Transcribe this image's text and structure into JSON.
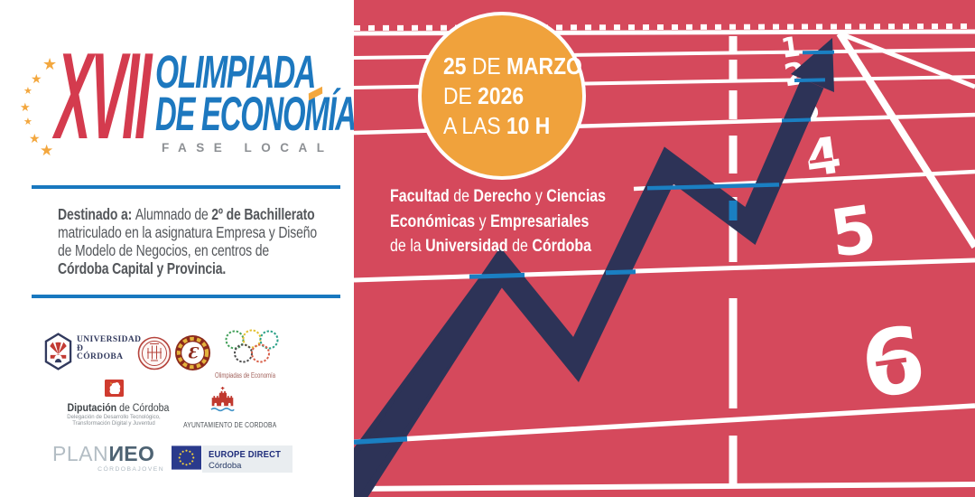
{
  "brand": {
    "numeral": "XVII",
    "title_line1": "OLIMPIADA",
    "title_line2": "DE ECONOMÍA",
    "tagline": "FASE LOCAL",
    "colors": {
      "red": "#d43b4e",
      "blue": "#1d78bf",
      "star_orange": "#f3a73e"
    }
  },
  "audience_lines": [
    [
      {
        "t": "Destinado a: ",
        "b": 1
      },
      {
        "t": "Alumnado de ",
        "b": 0
      },
      {
        "t": "2º de Bachillerato",
        "b": 1
      }
    ],
    [
      {
        "t": "matriculado en la asignatura Empresa y Diseño",
        "b": 0
      }
    ],
    [
      {
        "t": "de Modelo de Negocios, en centros de",
        "b": 0
      }
    ],
    [
      {
        "t": "Córdoba Capital y Provincia.",
        "b": 1
      }
    ]
  ],
  "sponsors": {
    "uco": {
      "line1": "UNIVERSIDAD",
      "line2": "Ð",
      "line3": "CÓRDOBA"
    },
    "economics_seal_letter": "Ɛ",
    "rings_caption": "Olimpiadas de Economía",
    "diputacion": {
      "name_bold": "Diputación",
      "name_rest": " de Córdoba",
      "sub1": "Delegación de Desarrollo Tecnológico,",
      "sub2": "Transformación Digital y Juventud"
    },
    "ayuntamiento": {
      "label": "AYUNTAMIENTO DE CORDOBA"
    },
    "planneo": {
      "part1": "PLAN",
      "n": "N",
      "part2": "EO",
      "sub": "CÓRDOBAJOVEN"
    },
    "europe_direct": {
      "title": "EUROPE DIRECT",
      "sub": "Córdoba"
    }
  },
  "event": {
    "badge_lines": [
      [
        {
          "t": "25 ",
          "b": 1
        },
        {
          "t": "DE ",
          "b": 0
        },
        {
          "t": "MARZO",
          "b": 1
        }
      ],
      [
        {
          "t": "DE ",
          "b": 0
        },
        {
          "t": "2026",
          "b": 1
        }
      ],
      [
        {
          "t": "A LAS ",
          "b": 0
        },
        {
          "t": "10 H",
          "b": 1
        }
      ]
    ],
    "venue_lines": [
      [
        {
          "t": "Facultad",
          "b": 1
        },
        {
          "t": " de ",
          "b": 0
        },
        {
          "t": "Derecho",
          "b": 1
        },
        {
          "t": " y ",
          "b": 0
        },
        {
          "t": "Ciencias",
          "b": 1
        }
      ],
      [
        {
          "t": "Económicas",
          "b": 1
        },
        {
          "t": " y ",
          "b": 0
        },
        {
          "t": "Empresariales",
          "b": 1
        }
      ],
      [
        {
          "t": "de la ",
          "b": 0
        },
        {
          "t": "Universidad",
          "b": 1
        },
        {
          "t": " de ",
          "b": 0
        },
        {
          "t": "Córdoba",
          "b": 1
        }
      ]
    ],
    "badge_color": "#f0a23c"
  },
  "track": {
    "lane_numbers": [
      "1",
      "2",
      "3",
      "4",
      "5",
      "6"
    ],
    "colors": {
      "red": "#d5495c",
      "navy": "#2d3357",
      "blue": "#1a7fc2",
      "white": "#ffffff"
    }
  }
}
